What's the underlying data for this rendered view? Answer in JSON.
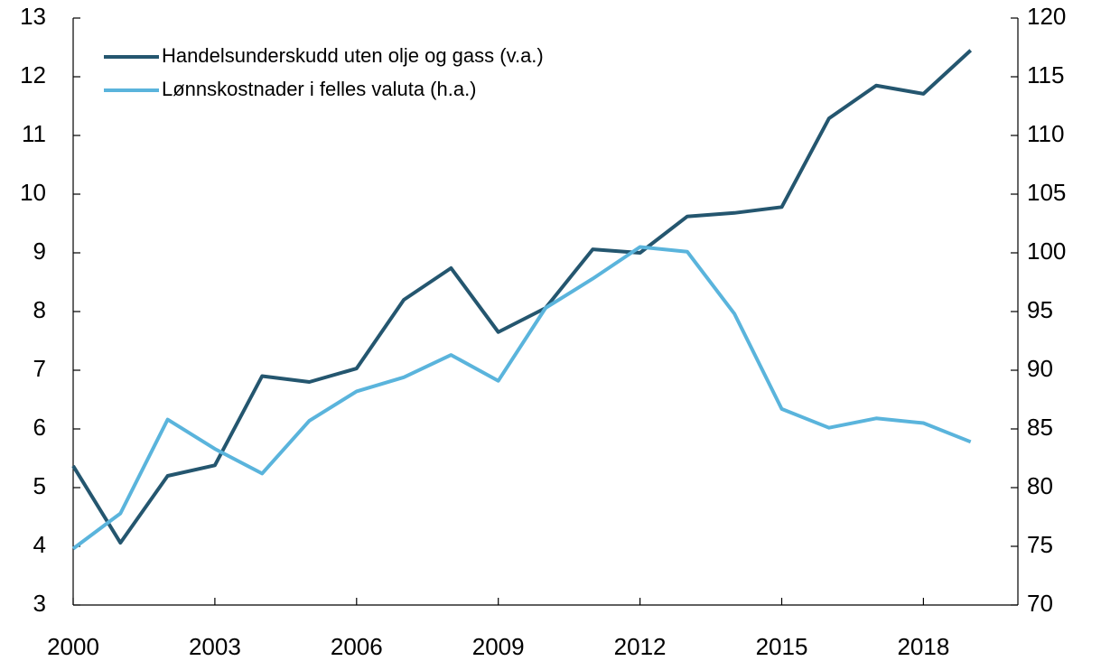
{
  "chart_data": {
    "type": "line",
    "x": [
      2000,
      2001,
      2002,
      2003,
      2004,
      2005,
      2006,
      2007,
      2008,
      2009,
      2010,
      2011,
      2012,
      2013,
      2014,
      2015,
      2016,
      2017,
      2018,
      2019
    ],
    "series": [
      {
        "name": "Handelsunderskudd uten olje og gass (v.a.)",
        "color": "#24566f",
        "axis": "y",
        "values": [
          5.37,
          4.06,
          5.2,
          5.38,
          6.9,
          6.8,
          7.03,
          8.2,
          8.74,
          7.65,
          8.06,
          9.06,
          9.0,
          9.62,
          9.68,
          9.78,
          11.29,
          11.85,
          11.71,
          12.45
        ]
      },
      {
        "name": "Lønnskostnader i felles valuta (h.a.)",
        "color": "#5ab4dc",
        "axis": "y2",
        "values": [
          74.8,
          77.8,
          85.8,
          83.3,
          81.2,
          85.7,
          88.2,
          89.4,
          91.3,
          89.1,
          95.3,
          97.8,
          100.5,
          100.1,
          94.8,
          86.7,
          85.1,
          85.9,
          85.5,
          83.9
        ]
      }
    ],
    "xlim": [
      2000,
      2020
    ],
    "xticks": [
      2000,
      2003,
      2006,
      2009,
      2012,
      2015,
      2018
    ],
    "ylim": [
      3,
      13
    ],
    "yticks": [
      3,
      4,
      5,
      6,
      7,
      8,
      9,
      10,
      11,
      12,
      13
    ],
    "y2lim": [
      70,
      120
    ],
    "y2ticks": [
      70,
      75,
      80,
      85,
      90,
      95,
      100,
      105,
      110,
      115,
      120
    ],
    "legend": "upper left"
  }
}
